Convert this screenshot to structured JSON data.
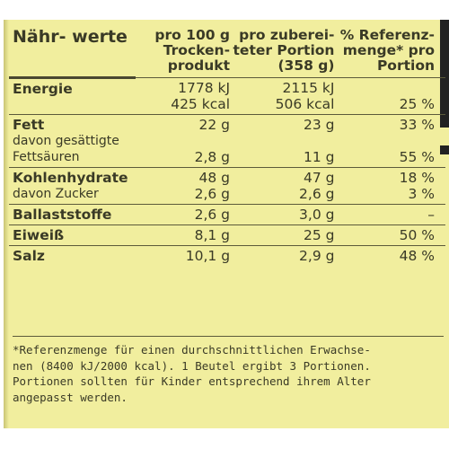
{
  "header": {
    "col0": [
      "Nähr-",
      "werte"
    ],
    "col1": [
      "pro 100 g",
      "Trocken-",
      "produkt"
    ],
    "col2": [
      "pro zuberei-",
      "teter Portion",
      "(358 g)"
    ],
    "col3": [
      "% Referenz-",
      "menge*",
      "pro Portion"
    ]
  },
  "rows": [
    {
      "name": [
        "Energie",
        ""
      ],
      "v1": [
        "1778 kJ",
        "425 kcal"
      ],
      "v2": [
        "2115 kJ",
        "506 kcal"
      ],
      "v3": [
        "",
        "25 %"
      ]
    },
    {
      "name": [
        "Fett",
        "davon gesättigte",
        "Fettsäuren"
      ],
      "v1": [
        "22 g",
        "",
        "2,8 g"
      ],
      "v2": [
        "23 g",
        "",
        "11 g"
      ],
      "v3": [
        "33 %",
        "",
        "55 %"
      ]
    },
    {
      "name": [
        "Kohlenhydrate",
        "davon Zucker"
      ],
      "v1": [
        "48 g",
        "2,6 g"
      ],
      "v2": [
        "47 g",
        "2,6 g"
      ],
      "v3": [
        "18 %",
        "3 %"
      ]
    },
    {
      "name": [
        "Ballaststoffe"
      ],
      "v1": [
        "2,6 g"
      ],
      "v2": [
        "3,0 g"
      ],
      "v3": [
        "–"
      ]
    },
    {
      "name": [
        "Eiweiß"
      ],
      "v1": [
        "8,1 g"
      ],
      "v2": [
        "25 g"
      ],
      "v3": [
        "50 %"
      ]
    },
    {
      "name": [
        "Salz"
      ],
      "v1": [
        "10,1 g"
      ],
      "v2": [
        "2,9 g"
      ],
      "v3": [
        "48 %"
      ]
    }
  ],
  "footnote": [
    "*Referenzmenge für einen durchschnittlichen Erwachse-",
    "nen (8400 kJ/2000 kcal). 1 Beutel ergibt 3 Portionen.",
    "Portionen sollten für Kinder entsprechend ihrem Alter",
    "angepasst werden."
  ]
}
